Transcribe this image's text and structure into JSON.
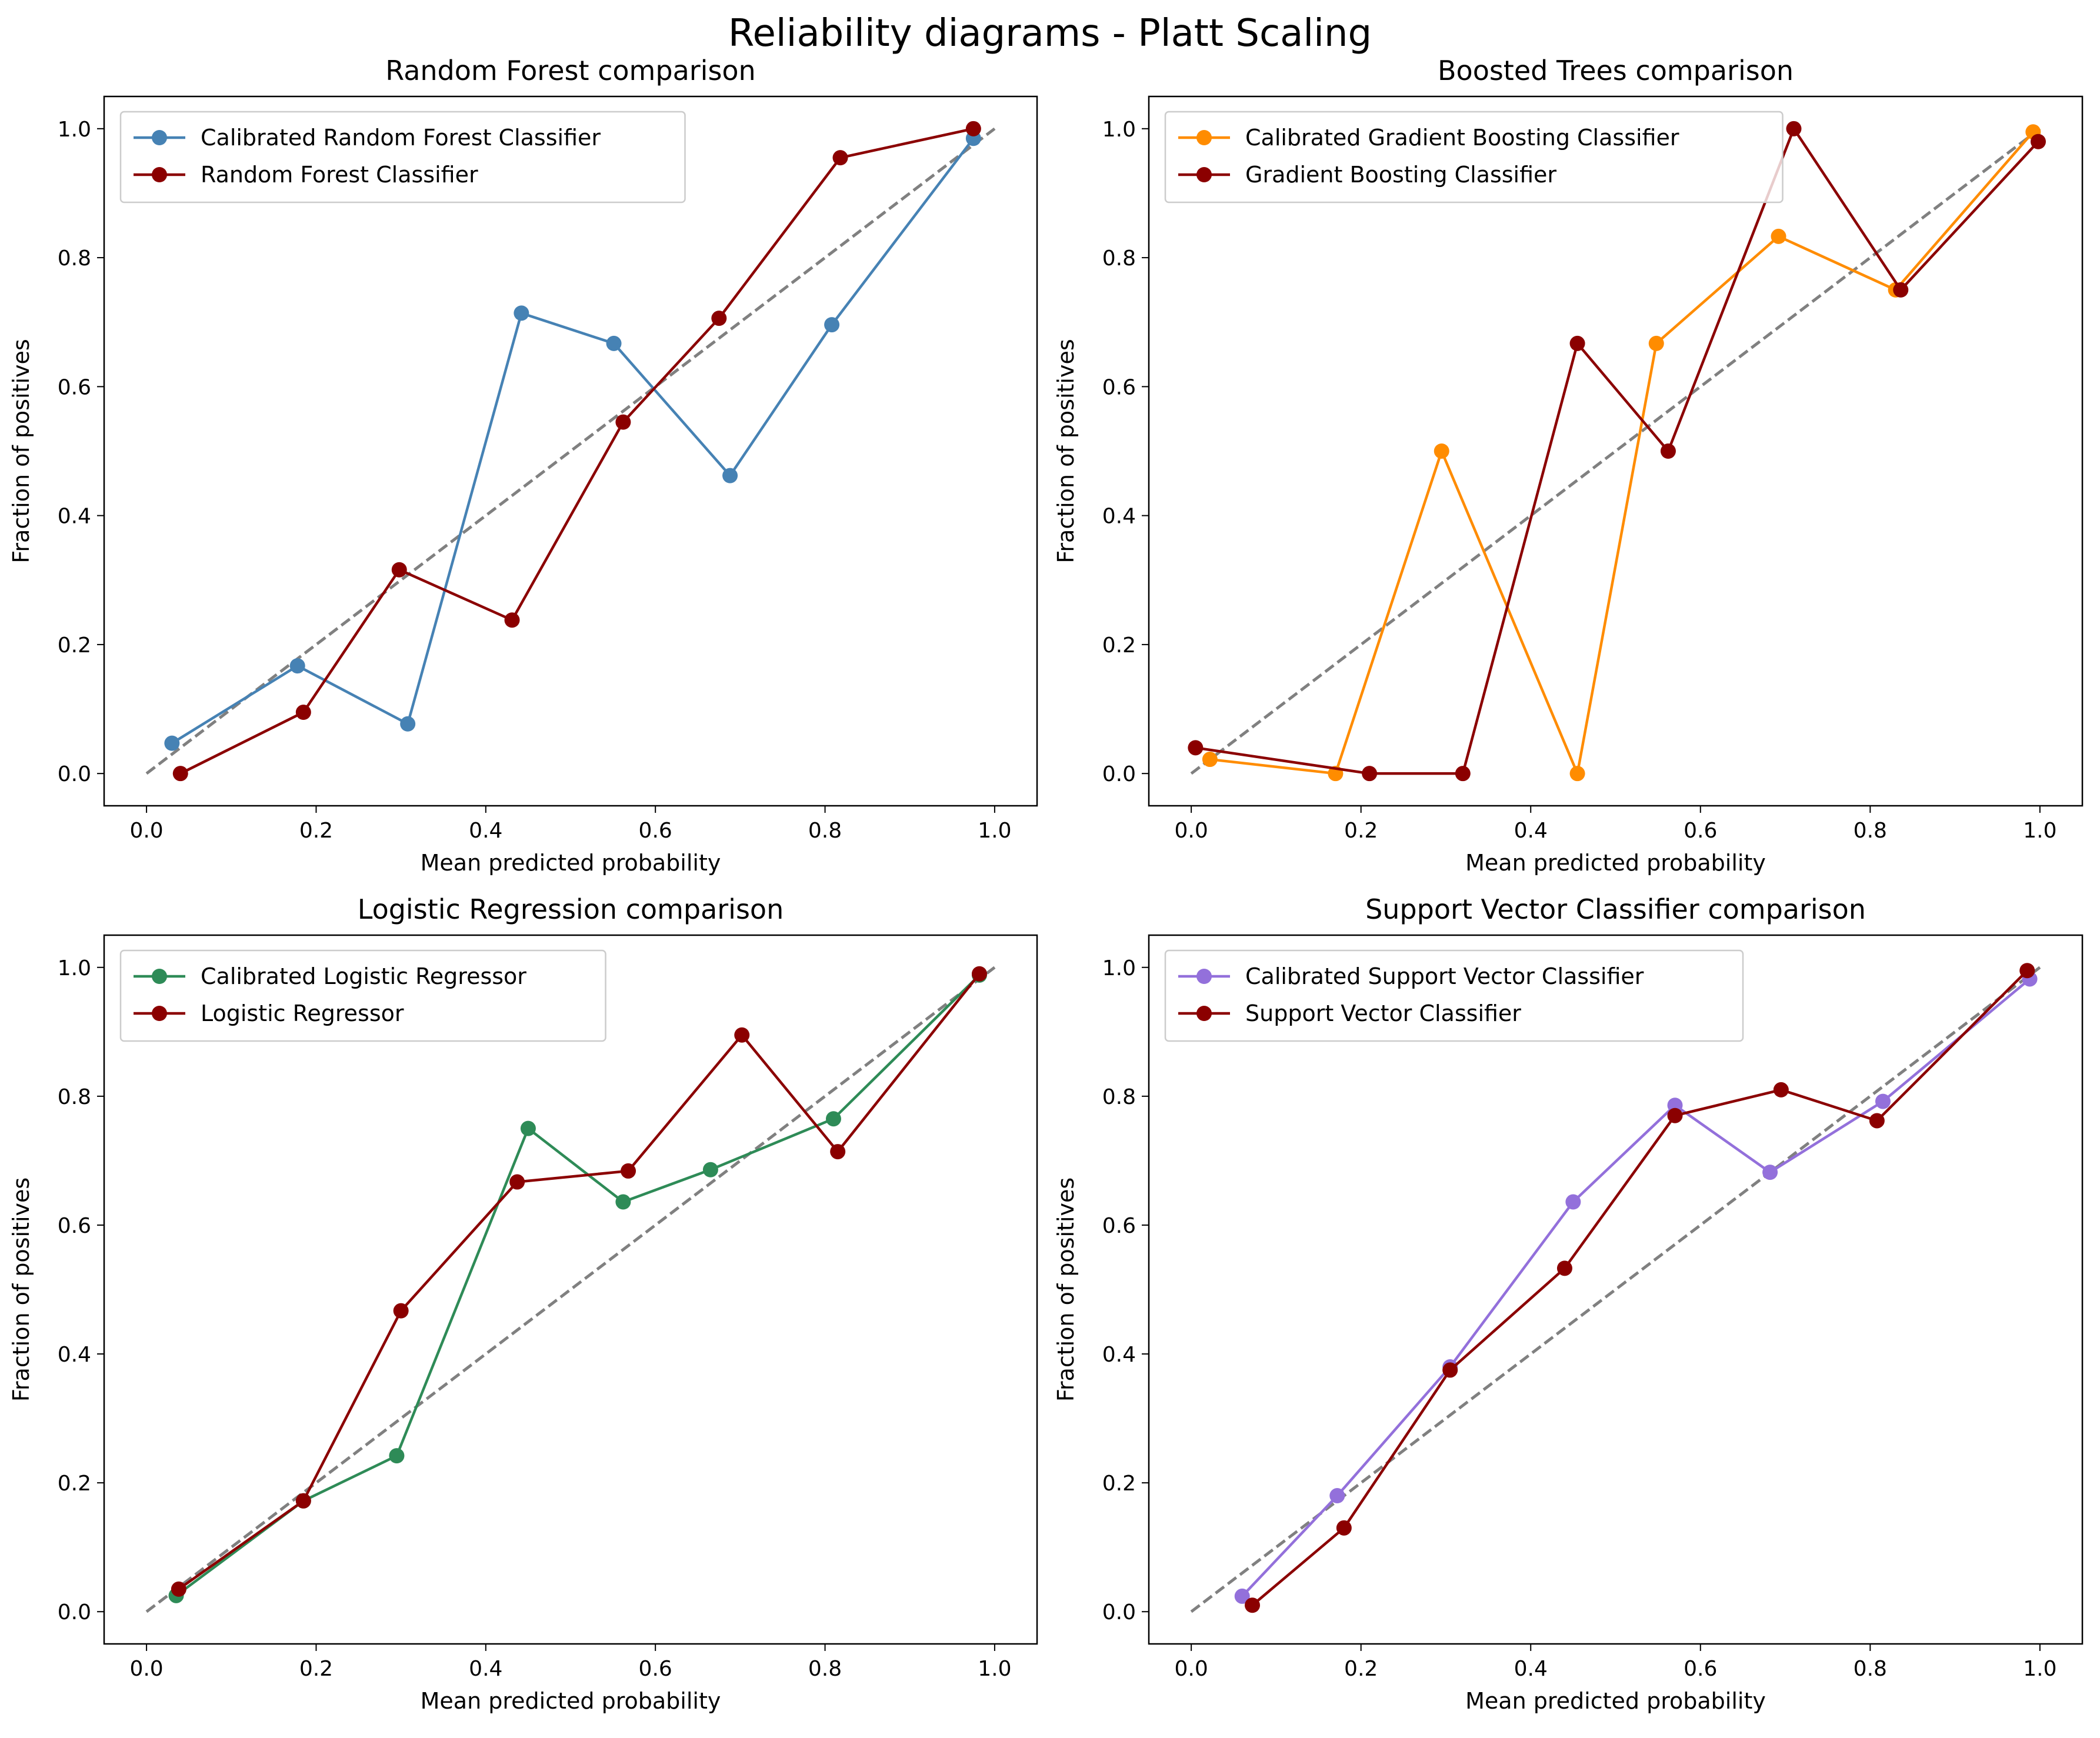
{
  "figure": {
    "title": "Reliability diagrams - Platt Scaling",
    "reference_color": "#808080"
  },
  "chart_data": [
    {
      "type": "line",
      "title": "Random Forest comparison",
      "xlabel": "Mean predicted probability",
      "ylabel": "Fraction of positives",
      "xlim": [
        -0.05,
        1.05
      ],
      "ylim": [
        -0.05,
        1.05
      ],
      "xticks": [
        "0.0",
        "0.2",
        "0.4",
        "0.6",
        "0.8",
        "1.0"
      ],
      "yticks": [
        "0.0",
        "0.2",
        "0.4",
        "0.6",
        "0.8",
        "1.0"
      ],
      "legend": "upper left",
      "reference_line": [
        [
          0,
          0
        ],
        [
          1,
          1
        ]
      ],
      "series": [
        {
          "name": "Calibrated Random Forest Classifier",
          "color": "#4682B4",
          "x": [
            0.03,
            0.178,
            0.308,
            0.442,
            0.551,
            0.688,
            0.808,
            0.975
          ],
          "y": [
            0.047,
            0.167,
            0.077,
            0.714,
            0.667,
            0.462,
            0.696,
            0.985
          ]
        },
        {
          "name": "Random Forest Classifier",
          "color": "#8B0000",
          "x": [
            0.04,
            0.185,
            0.298,
            0.431,
            0.562,
            0.675,
            0.818,
            0.975
          ],
          "y": [
            0.0,
            0.095,
            0.316,
            0.238,
            0.545,
            0.706,
            0.955,
            1.0
          ]
        }
      ]
    },
    {
      "type": "line",
      "title": "Boosted Trees comparison",
      "xlabel": "Mean predicted probability",
      "ylabel": "Fraction of positives",
      "xlim": [
        -0.05,
        1.05
      ],
      "ylim": [
        -0.05,
        1.05
      ],
      "xticks": [
        "0.0",
        "0.2",
        "0.4",
        "0.6",
        "0.8",
        "1.0"
      ],
      "yticks": [
        "0.0",
        "0.2",
        "0.4",
        "0.6",
        "0.8",
        "1.0"
      ],
      "legend": "upper left",
      "reference_line": [
        [
          0,
          0
        ],
        [
          1,
          1
        ]
      ],
      "series": [
        {
          "name": "Calibrated Gradient Boosting Classifier",
          "color": "#FF8C00",
          "x": [
            0.022,
            0.17,
            0.295,
            0.455,
            0.548,
            0.692,
            0.83,
            0.992
          ],
          "y": [
            0.022,
            0.0,
            0.5,
            0.0,
            0.667,
            0.833,
            0.75,
            0.995
          ]
        },
        {
          "name": "Gradient Boosting Classifier",
          "color": "#8B0000",
          "x": [
            0.005,
            0.21,
            0.32,
            0.455,
            0.562,
            0.71,
            0.836,
            0.998
          ],
          "y": [
            0.04,
            0.0,
            0.0,
            0.667,
            0.5,
            1.0,
            0.75,
            0.98
          ]
        }
      ]
    },
    {
      "type": "line",
      "title": "Logistic Regression comparison",
      "xlabel": "Mean predicted probability",
      "ylabel": "Fraction of positives",
      "xlim": [
        -0.05,
        1.05
      ],
      "ylim": [
        -0.05,
        1.05
      ],
      "xticks": [
        "0.0",
        "0.2",
        "0.4",
        "0.6",
        "0.8",
        "1.0"
      ],
      "yticks": [
        "0.0",
        "0.2",
        "0.4",
        "0.6",
        "0.8",
        "1.0"
      ],
      "legend": "upper left",
      "reference_line": [
        [
          0,
          0
        ],
        [
          1,
          1
        ]
      ],
      "series": [
        {
          "name": "Calibrated Logistic Regressor",
          "color": "#2E8B57",
          "x": [
            0.035,
            0.185,
            0.295,
            0.45,
            0.562,
            0.665,
            0.81,
            0.982
          ],
          "y": [
            0.025,
            0.172,
            0.242,
            0.75,
            0.636,
            0.686,
            0.765,
            0.988
          ]
        },
        {
          "name": "Logistic Regressor",
          "color": "#8B0000",
          "x": [
            0.038,
            0.185,
            0.3,
            0.437,
            0.568,
            0.702,
            0.815,
            0.982
          ],
          "y": [
            0.035,
            0.172,
            0.467,
            0.667,
            0.684,
            0.895,
            0.714,
            0.99
          ]
        }
      ]
    },
    {
      "type": "line",
      "title": "Support Vector Classifier comparison",
      "xlabel": "Mean predicted probability",
      "ylabel": "Fraction of positives",
      "xlim": [
        -0.05,
        1.05
      ],
      "ylim": [
        -0.05,
        1.05
      ],
      "xticks": [
        "0.0",
        "0.2",
        "0.4",
        "0.6",
        "0.8",
        "1.0"
      ],
      "yticks": [
        "0.0",
        "0.2",
        "0.4",
        "0.6",
        "0.8",
        "1.0"
      ],
      "legend": "upper left",
      "reference_line": [
        [
          0,
          0
        ],
        [
          1,
          1
        ]
      ],
      "series": [
        {
          "name": "Calibrated Support Vector Classifier",
          "color": "#9370DB",
          "x": [
            0.06,
            0.172,
            0.305,
            0.45,
            0.57,
            0.682,
            0.815,
            0.988
          ],
          "y": [
            0.024,
            0.18,
            0.38,
            0.636,
            0.786,
            0.682,
            0.792,
            0.982
          ]
        },
        {
          "name": "Support Vector Classifier",
          "color": "#8B0000",
          "x": [
            0.072,
            0.18,
            0.305,
            0.44,
            0.57,
            0.695,
            0.808,
            0.985
          ],
          "y": [
            0.01,
            0.13,
            0.375,
            0.533,
            0.77,
            0.81,
            0.762,
            0.995
          ]
        }
      ]
    }
  ]
}
